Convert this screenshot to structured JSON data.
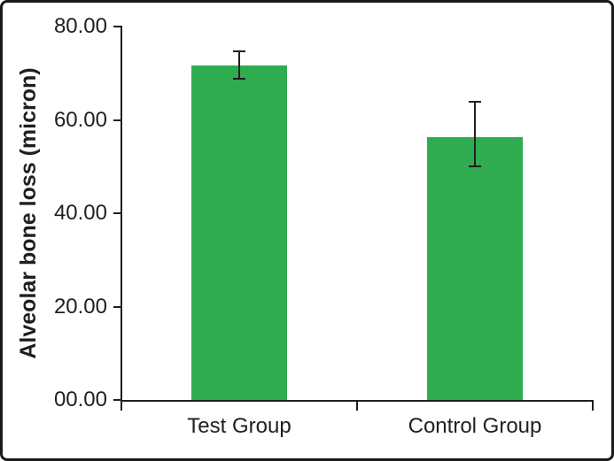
{
  "figure": {
    "background": "#ffffff",
    "border_color": "#1a1a1a",
    "text_color": "#1f1f1f"
  },
  "chart_data": {
    "type": "bar",
    "title": "",
    "categories": [
      "Test Group",
      "Control Group"
    ],
    "values": [
      71.6,
      56.3
    ],
    "errors": [
      {
        "low": 68.9,
        "high": 74.7
      },
      {
        "low": 50.1,
        "high": 63.9
      }
    ],
    "xlabel": "",
    "ylabel": "Alveolar bone loss (micron)",
    "ylim": [
      0,
      80
    ],
    "yticks": [
      0,
      20,
      40,
      60,
      80
    ],
    "ytick_labels": [
      "00.00",
      "20.00",
      "40.00",
      "60.00",
      "80.00"
    ],
    "bar_color": "#2eac4f",
    "axis_color": "#1f1f1f",
    "grid": false,
    "legend": null
  }
}
